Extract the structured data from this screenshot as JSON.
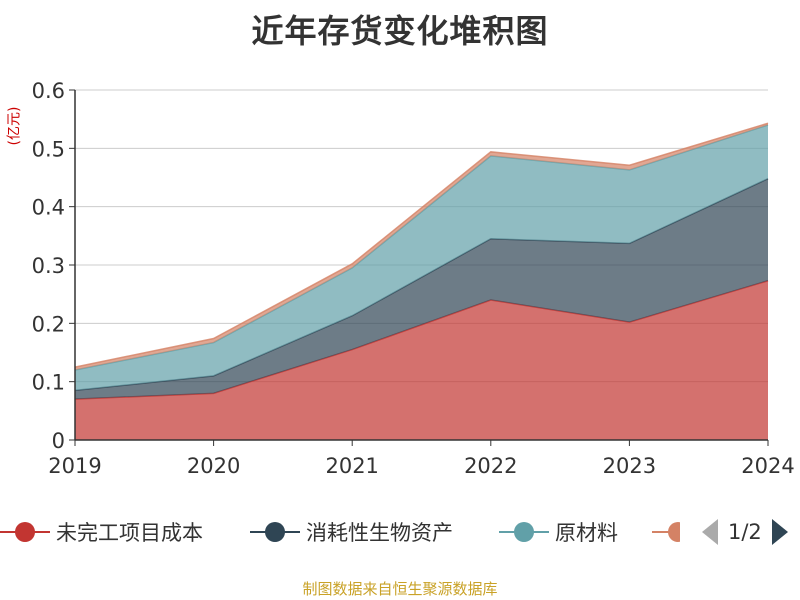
{
  "chart_data": {
    "type": "area",
    "title": "近年存货变化堆积图",
    "unit_label": "(亿元)",
    "x": [
      "2019",
      "2020",
      "2021",
      "2022",
      "2023",
      "2024"
    ],
    "ylim": [
      0,
      0.6
    ],
    "yticks": [
      "0",
      "0.1",
      "0.2",
      "0.3",
      "0.4",
      "0.5",
      "0.6"
    ],
    "stacked": true,
    "grid": true,
    "legend_position": "bottom",
    "series": [
      {
        "name": "未完工项目成本",
        "color": "#c23531",
        "values": [
          0.07,
          0.08,
          0.155,
          0.24,
          0.202,
          0.273
        ]
      },
      {
        "name": "消耗性生物资产",
        "color": "#2f4554",
        "values": [
          0.015,
          0.03,
          0.058,
          0.105,
          0.135,
          0.175
        ]
      },
      {
        "name": "原材料",
        "color": "#61a0a8",
        "values": [
          0.035,
          0.057,
          0.082,
          0.142,
          0.126,
          0.092
        ]
      },
      {
        "name": "",
        "color": "#d48265",
        "values": [
          0.005,
          0.007,
          0.007,
          0.007,
          0.008,
          0.003
        ]
      }
    ]
  },
  "legend": {
    "items": [
      {
        "label": "未完工项目成本",
        "color": "#c23531"
      },
      {
        "label": "消耗性生物资产",
        "color": "#2f4554"
      },
      {
        "label": "原材料",
        "color": "#61a0a8"
      },
      {
        "label": "",
        "color": "#d48265"
      }
    ],
    "pager_text": "1/2"
  },
  "source": "制图数据来自恒生聚源数据库"
}
